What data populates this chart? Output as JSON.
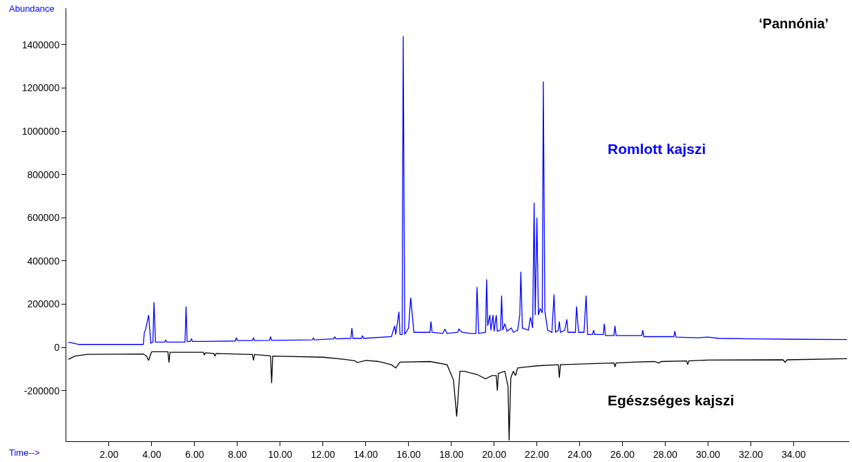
{
  "chart_data": {
    "type": "line",
    "title": "‘Pannónia’",
    "xlabel": "Time-->",
    "ylabel": "Abundance",
    "xlim": [
      0,
      36.6
    ],
    "ylim": [
      -434000,
      1569000
    ],
    "xticks": [
      {
        "value": 2,
        "label": "2.00"
      },
      {
        "value": 4,
        "label": "4.00"
      },
      {
        "value": 6,
        "label": "6.00"
      },
      {
        "value": 8,
        "label": "8.00"
      },
      {
        "value": 10,
        "label": "10.00"
      },
      {
        "value": 12,
        "label": "12.00"
      },
      {
        "value": 14,
        "label": "14.00"
      },
      {
        "value": 16,
        "label": "16.00"
      },
      {
        "value": 18,
        "label": "18.00"
      },
      {
        "value": 20,
        "label": "20.00"
      },
      {
        "value": 22,
        "label": "22.00"
      },
      {
        "value": 24,
        "label": "24.00"
      },
      {
        "value": 26,
        "label": "26.00"
      },
      {
        "value": 28,
        "label": "28.00"
      },
      {
        "value": 30,
        "label": "30.00"
      },
      {
        "value": 32,
        "label": "32.00"
      },
      {
        "value": 34,
        "label": "34.00"
      }
    ],
    "yticks": [
      -200000,
      0,
      200000,
      400000,
      600000,
      800000,
      1000000,
      1200000,
      1400000
    ],
    "legend": false,
    "marker": "none",
    "line_style": "solid",
    "series": [
      {
        "name": "Romlott kajszi",
        "color": "#0000ff",
        "x": [
          0.1,
          0.6,
          3.6,
          3.65,
          3.7,
          3.85,
          3.95,
          4.05,
          4.1,
          4.17,
          4.6,
          4.65,
          4.7,
          5.55,
          5.6,
          5.65,
          5.8,
          5.85,
          5.9,
          6.5,
          7.9,
          7.95,
          8.0,
          8.7,
          8.75,
          8.8,
          9.5,
          9.55,
          9.6,
          11.5,
          11.55,
          11.6,
          12.5,
          12.55,
          12.6,
          13.3,
          13.35,
          13.4,
          13.8,
          13.85,
          13.9,
          15.2,
          15.35,
          15.4,
          15.55,
          15.6,
          15.7,
          15.75,
          15.82,
          16.0,
          16.1,
          16.25,
          17.0,
          17.05,
          17.1,
          17.6,
          17.7,
          17.8,
          18.3,
          18.35,
          18.5,
          18.9,
          19.15,
          19.2,
          19.28,
          19.6,
          19.65,
          19.7,
          19.8,
          19.85,
          19.95,
          20.0,
          20.1,
          20.15,
          20.3,
          20.35,
          20.4,
          20.5,
          20.6,
          20.8,
          20.9,
          21.1,
          21.2,
          21.25,
          21.32,
          21.6,
          21.7,
          21.8,
          21.87,
          21.92,
          22.0,
          22.07,
          22.15,
          22.25,
          22.3,
          22.37,
          22.5,
          22.7,
          22.8,
          22.87,
          23.0,
          23.05,
          23.1,
          23.3,
          23.4,
          23.45,
          23.8,
          23.85,
          23.95,
          24.2,
          24.3,
          24.37,
          24.6,
          24.65,
          24.7,
          25.1,
          25.15,
          25.2,
          25.6,
          25.65,
          25.7,
          26.9,
          26.95,
          27.0,
          27.8,
          28.4,
          28.45,
          28.5,
          29.5,
          30.0,
          30.5,
          32.0,
          34.0,
          36.5
        ],
        "values": [
          25000,
          14000,
          14000,
          70000,
          80000,
          150000,
          20000,
          25000,
          210000,
          25000,
          25000,
          35000,
          25000,
          25000,
          190000,
          28000,
          28000,
          40000,
          28000,
          28000,
          30000,
          45000,
          32000,
          32000,
          45000,
          32000,
          33000,
          50000,
          33000,
          35000,
          45000,
          35000,
          40000,
          50000,
          40000,
          42000,
          90000,
          42000,
          42000,
          55000,
          42000,
          50000,
          100000,
          60000,
          165000,
          60000,
          60000,
          1440000,
          60000,
          90000,
          230000,
          70000,
          70000,
          120000,
          70000,
          65000,
          85000,
          65000,
          70000,
          85000,
          70000,
          65000,
          65000,
          280000,
          65000,
          70000,
          315000,
          100000,
          150000,
          80000,
          150000,
          75000,
          150000,
          75000,
          80000,
          240000,
          80000,
          110000,
          75000,
          90000,
          70000,
          80000,
          150000,
          350000,
          90000,
          80000,
          140000,
          90000,
          670000,
          150000,
          600000,
          150000,
          180000,
          160000,
          1230000,
          170000,
          80000,
          70000,
          245000,
          70000,
          80000,
          120000,
          70000,
          80000,
          130000,
          70000,
          70000,
          190000,
          70000,
          70000,
          240000,
          60000,
          60000,
          80000,
          60000,
          60000,
          110000,
          55000,
          55000,
          100000,
          55000,
          55000,
          80000,
          50000,
          50000,
          50000,
          75000,
          48000,
          45000,
          48000,
          42000,
          40000,
          38000,
          37000
        ]
      },
      {
        "name": "Egészséges kajszi",
        "color": "#000000",
        "x": [
          0.1,
          0.4,
          1.0,
          3.6,
          3.75,
          3.85,
          3.95,
          4.0,
          4.75,
          4.8,
          4.85,
          6.4,
          6.45,
          6.5,
          6.9,
          6.95,
          7.0,
          8.7,
          8.75,
          8.8,
          9.5,
          9.55,
          9.6,
          9.65,
          12.0,
          13.0,
          13.5,
          13.6,
          14.0,
          14.6,
          15.2,
          15.4,
          15.6,
          17.0,
          17.8,
          18.1,
          18.25,
          18.4,
          18.6,
          19.2,
          19.6,
          19.9,
          20.1,
          20.15,
          20.2,
          20.5,
          20.65,
          20.7,
          20.78,
          20.9,
          21.0,
          21.1,
          21.5,
          22.0,
          23.0,
          23.05,
          23.1,
          24.5,
          25.6,
          25.65,
          25.7,
          26.5,
          27.5,
          27.7,
          27.8,
          29.0,
          29.05,
          29.1,
          30.0,
          33.5,
          33.6,
          33.7,
          36.5
        ],
        "values": [
          -55000,
          -40000,
          -32000,
          -30000,
          -40000,
          -60000,
          -30000,
          -20000,
          -20000,
          -70000,
          -22000,
          -22000,
          -35000,
          -25000,
          -28000,
          -40000,
          -28000,
          -33000,
          -60000,
          -33000,
          -38000,
          -40000,
          -165000,
          -40000,
          -45000,
          -55000,
          -62000,
          -70000,
          -60000,
          -65000,
          -80000,
          -95000,
          -68000,
          -65000,
          -80000,
          -150000,
          -320000,
          -110000,
          -110000,
          -125000,
          -145000,
          -130000,
          -130000,
          -200000,
          -120000,
          -110000,
          -180000,
          -430000,
          -140000,
          -110000,
          -130000,
          -95000,
          -90000,
          -85000,
          -80000,
          -140000,
          -80000,
          -75000,
          -72000,
          -90000,
          -72000,
          -68000,
          -65000,
          -72000,
          -65000,
          -62000,
          -80000,
          -62000,
          -58000,
          -57000,
          -68000,
          -57000,
          -52000
        ]
      }
    ]
  }
}
